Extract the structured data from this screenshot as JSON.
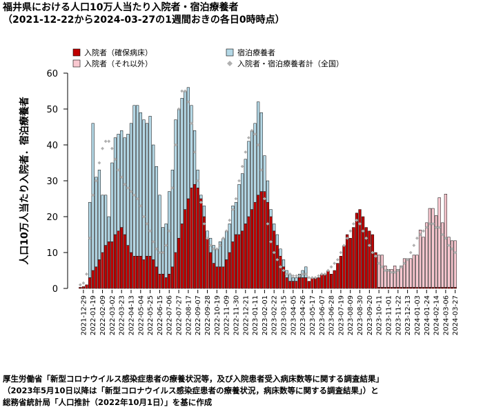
{
  "chart_data": {
    "type": "bar",
    "stacked": true,
    "title": "福井県における人口10万人当たり入院者・宿泊療養者",
    "subtitle": "（2021-12-22から2024-03-27の1週間おきの各日0時時点）",
    "ylabel": "人口10万人当たり入院者．宿泊療養者",
    "source": [
      "厚生労働省「新型コロナウイルス感染症患者の療養状況等，及び入院患者受入病床数等に関する調査結果」",
      "（2023年5月10日以降は「新型コロナウイルス感染症患者の療養状況，病床数等に関する調査結果」）と",
      "総務省統計局「人口推計（2022年10月1日）」を基に作成"
    ],
    "ylim": [
      0,
      60
    ],
    "yticks": [
      0,
      10,
      20,
      30,
      40,
      50,
      60
    ],
    "categories": [
      null,
      "2021-12-29",
      null,
      null,
      "2022-01-19",
      null,
      null,
      "2022-02-09",
      null,
      null,
      "2022-03-02",
      null,
      null,
      "2022-03-23",
      null,
      null,
      "2022-04-13",
      null,
      null,
      "2022-05-04",
      null,
      null,
      "2022-05-25",
      null,
      null,
      "2022-06-15",
      null,
      null,
      "2022-07-06",
      null,
      null,
      "2022-07-27",
      null,
      null,
      "2022-08-17",
      null,
      null,
      "2022-09-07",
      null,
      null,
      "2022-09-28",
      null,
      null,
      "2022-10-19",
      null,
      null,
      "2022-11-09",
      null,
      null,
      "2022-11-30",
      null,
      null,
      "2022-12-21",
      null,
      null,
      "2023-01-11",
      null,
      null,
      "2023-02-01",
      null,
      null,
      "2023-02-22",
      null,
      null,
      "2023-03-15",
      null,
      null,
      "2023-04-05",
      null,
      null,
      "2023-04-26",
      null,
      null,
      "2023-05-17",
      null,
      null,
      "2023-06-07",
      null,
      null,
      "2023-06-28",
      null,
      null,
      "2023-07-19",
      null,
      null,
      "2023-08-09",
      null,
      null,
      "2023-08-30",
      null,
      null,
      "2023-09-20",
      null,
      null,
      "2023-10-11",
      null,
      null,
      "2023-11-01",
      null,
      null,
      "2023-11-22",
      null,
      null,
      "2023-12-13",
      null,
      null,
      "2024-01-03",
      null,
      null,
      "2024-01-24",
      null,
      null,
      "2024-02-14",
      null,
      null,
      "2024-03-06",
      null,
      null,
      "2024-03-27"
    ],
    "series": [
      {
        "name": "入院者（確保病床）",
        "color": "#c00000",
        "values": [
          0.3,
          0.5,
          1,
          3,
          5,
          6,
          8,
          10,
          12,
          13,
          13,
          15,
          16,
          17,
          15,
          12,
          10,
          9,
          9,
          9,
          8,
          9,
          9,
          8,
          6,
          4,
          4,
          3,
          4,
          6,
          10,
          14,
          18,
          22,
          25,
          28,
          29,
          28,
          25,
          20,
          14,
          10,
          7,
          6,
          6,
          6,
          8,
          10,
          13,
          15,
          15,
          16,
          18,
          20,
          22,
          24,
          26,
          27,
          27,
          24,
          20,
          16,
          12,
          9,
          6,
          3,
          2,
          2,
          2,
          3,
          3,
          3,
          2,
          3,
          3,
          3,
          4,
          4,
          5,
          4,
          5,
          7,
          9,
          12,
          15,
          14,
          17,
          21,
          22,
          20,
          17,
          16,
          15,
          10,
          0.3,
          0.3,
          0.3,
          0.3,
          0.3,
          0.3,
          0.3,
          0.3,
          0.3,
          0.3,
          0.3,
          0.3,
          0.3,
          0.3,
          0.3,
          0.3,
          0.3,
          0.3,
          0.3,
          0.3,
          0.3,
          0.3,
          0.3,
          0.3,
          0.3
        ]
      },
      {
        "name": "入院者（それ以外）",
        "color": "#f9c8d0",
        "values": [
          0,
          0,
          0,
          0,
          0,
          0,
          0,
          0,
          0,
          0,
          0,
          0,
          0,
          0,
          0,
          0,
          0,
          0,
          0,
          0,
          0,
          0,
          0,
          0,
          0,
          0,
          0,
          0,
          0,
          0,
          0,
          0,
          0,
          0,
          0,
          0,
          0,
          0,
          0,
          0,
          0,
          0,
          0,
          0,
          0,
          0,
          0,
          0,
          0,
          0,
          0,
          0,
          0,
          0,
          0,
          0,
          0,
          0,
          0,
          0,
          0,
          0,
          0,
          0,
          0,
          0,
          0,
          0,
          0,
          0,
          0,
          0,
          0,
          0,
          0,
          0,
          0,
          0,
          0,
          0,
          0,
          0,
          0,
          0,
          0,
          0,
          0,
          0,
          0,
          0,
          0,
          0,
          0,
          0,
          9,
          9,
          6,
          5,
          5,
          6,
          5,
          6,
          8,
          8,
          8,
          9,
          9,
          16,
          14,
          18,
          22,
          22,
          20,
          25,
          18,
          26,
          14,
          13,
          13
        ]
      },
      {
        "name": "宿泊療養者",
        "color": "#b4d8e6",
        "values": [
          0,
          0,
          0,
          21,
          41,
          25,
          25,
          16,
          14,
          7,
          22,
          27,
          27,
          27,
          27,
          31,
          36,
          42,
          42,
          40,
          39,
          37,
          39,
          32,
          28,
          22,
          13,
          15,
          23,
          27,
          37,
          36,
          35,
          33,
          31,
          23,
          15,
          5,
          1,
          3,
          2,
          4,
          5,
          5,
          7,
          8,
          8,
          8,
          10,
          9,
          14,
          16,
          18,
          21,
          22,
          22,
          26,
          22,
          10,
          6,
          2,
          2,
          3,
          2,
          2,
          2,
          2,
          1,
          1,
          1,
          2,
          3,
          0,
          0,
          0,
          0,
          0,
          0,
          0,
          0,
          0,
          0,
          0,
          0,
          0,
          0,
          0,
          0,
          0,
          0,
          0,
          0,
          0,
          0,
          0,
          0,
          0,
          0,
          0,
          0,
          0,
          0,
          0,
          0,
          0,
          0,
          0,
          0,
          0,
          0,
          0,
          0,
          0,
          0,
          0,
          0,
          0,
          0,
          0
        ]
      },
      {
        "name": "入院者・宿泊療養者計（全国）",
        "color": "#b0b0b0",
        "type": "scatter",
        "marker": "diamond",
        "values": [
          1,
          1.5,
          4,
          14,
          26,
          30,
          35,
          39,
          41,
          41,
          39,
          36,
          33,
          31,
          29,
          28,
          27,
          26,
          25,
          23,
          20,
          18,
          16,
          13,
          11,
          10,
          10,
          12,
          16,
          28,
          40,
          50,
          55,
          55,
          52,
          46,
          38,
          30,
          24,
          18,
          14,
          12,
          11,
          11,
          12,
          14,
          16,
          19,
          22,
          25,
          30,
          34,
          38,
          42,
          44,
          43,
          40,
          33,
          25,
          18,
          13,
          10,
          8,
          6,
          5,
          4,
          4,
          3.5,
          3.5,
          3.5,
          4,
          4,
          3,
          3,
          3,
          3.5,
          4,
          4,
          5,
          6,
          7,
          8,
          10,
          12,
          14,
          16,
          18,
          19,
          18,
          16,
          14,
          12,
          10,
          9,
          7,
          6,
          5,
          5,
          4.5,
          4.5,
          5,
          6,
          7,
          8,
          10,
          12,
          14,
          15,
          16,
          17,
          18,
          18,
          17,
          17,
          15,
          14,
          12,
          11,
          10
        ]
      }
    ]
  }
}
